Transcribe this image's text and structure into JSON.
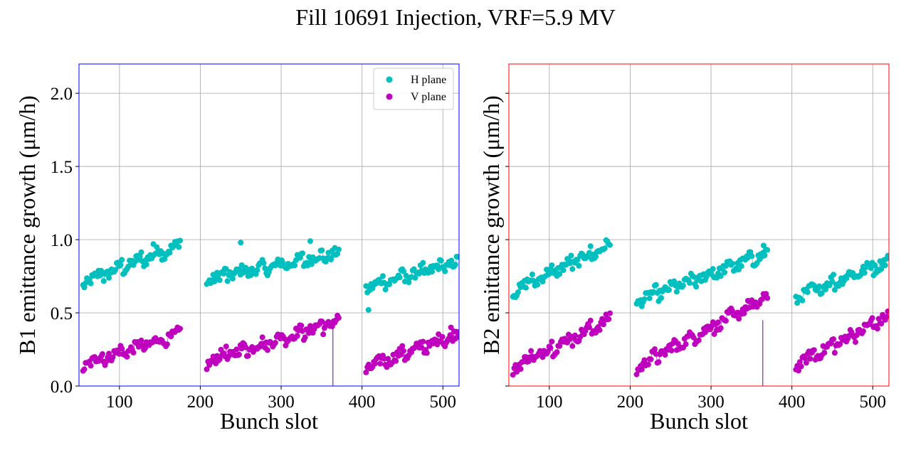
{
  "title": "Fill 10691 Injection, VRF=5.9 MV",
  "colors": {
    "h_plane": "#00bfbf",
    "v_plane": "#bf00bf",
    "b1_frame": "#0000ff",
    "b2_frame": "#ff0000"
  },
  "chart_data": [
    {
      "type": "scatter",
      "panel": "B1",
      "xlabel": "Bunch slot",
      "ylabel": "B1 emittance growth (μm/h)",
      "xlim": [
        50,
        520
      ],
      "ylim": [
        0,
        2.2
      ],
      "xticks": [
        "100",
        "200",
        "300",
        "400",
        "500"
      ],
      "yticks": [
        "0.0",
        "0.5",
        "1.0",
        "1.5",
        "2.0"
      ],
      "legend": {
        "position": "top-right",
        "entries": [
          "H plane",
          "V plane"
        ]
      },
      "grid": true,
      "series": [
        {
          "name": "H plane",
          "trains": [
            {
              "x_start": 55,
              "x_end": 175,
              "y_start": 0.68,
              "y_end": 0.93
            },
            {
              "x_start": 208,
              "x_end": 372,
              "y_start": 0.7,
              "y_end": 0.88
            },
            {
              "x_start": 405,
              "x_end": 520,
              "y_start": 0.65,
              "y_end": 0.82
            }
          ],
          "outliers": [
            {
              "x": 250,
              "y": 0.98
            },
            {
              "x": 336,
              "y": 0.99
            },
            {
              "x": 142,
              "y": 0.97
            },
            {
              "x": 408,
              "y": 0.52
            },
            {
              "x": 364,
              "y": 0.0
            }
          ]
        },
        {
          "name": "V plane",
          "trains": [
            {
              "x_start": 55,
              "x_end": 175,
              "y_start": 0.12,
              "y_end": 0.32
            },
            {
              "x_start": 208,
              "x_end": 372,
              "y_start": 0.14,
              "y_end": 0.42
            },
            {
              "x_start": 405,
              "x_end": 520,
              "y_start": 0.1,
              "y_end": 0.33
            }
          ],
          "outliers": [
            {
              "x": 364,
              "y": 0.0
            },
            {
              "x": 340,
              "y": 0.4
            },
            {
              "x": 510,
              "y": 0.4
            }
          ]
        }
      ]
    },
    {
      "type": "scatter",
      "panel": "B2",
      "xlabel": "Bunch slot",
      "ylabel": "B2 emittance growth (μm/h)",
      "xlim": [
        50,
        520
      ],
      "ylim": [
        0,
        2.2
      ],
      "xticks": [
        "100",
        "200",
        "300",
        "400",
        "500"
      ],
      "grid": true,
      "series": [
        {
          "name": "H plane",
          "trains": [
            {
              "x_start": 55,
              "x_end": 175,
              "y_start": 0.62,
              "y_end": 0.93
            },
            {
              "x_start": 208,
              "x_end": 370,
              "y_start": 0.55,
              "y_end": 0.88
            },
            {
              "x_start": 405,
              "x_end": 520,
              "y_start": 0.58,
              "y_end": 0.83
            }
          ],
          "outliers": [
            {
              "x": 365,
              "y": 0.96
            },
            {
              "x": 364,
              "y": 0.0
            }
          ]
        },
        {
          "name": "V plane",
          "trains": [
            {
              "x_start": 55,
              "x_end": 175,
              "y_start": 0.1,
              "y_end": 0.42
            },
            {
              "x_start": 208,
              "x_end": 370,
              "y_start": 0.1,
              "y_end": 0.58
            },
            {
              "x_start": 405,
              "x_end": 520,
              "y_start": 0.12,
              "y_end": 0.45
            }
          ],
          "outliers": [
            {
              "x": 364,
              "y": 0.0
            },
            {
              "x": 368,
              "y": 0.63
            }
          ]
        }
      ]
    }
  ]
}
